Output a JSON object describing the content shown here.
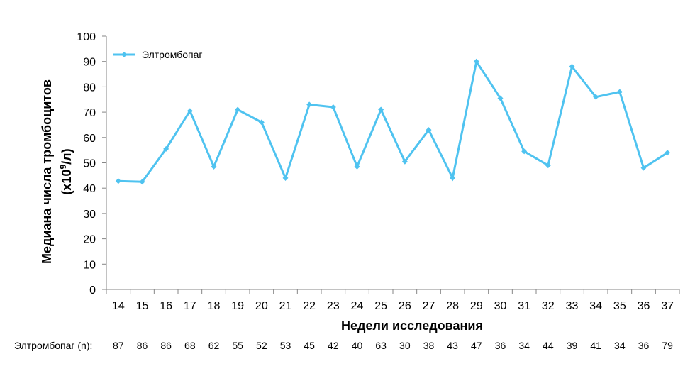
{
  "chart_data": {
    "type": "line",
    "xlabel": "Недели исследования",
    "ylabel_line1": "Медиана числа тромбоцитов",
    "ylabel_line2_prefix": "(x10",
    "ylabel_line2_sup": "9",
    "ylabel_line2_suffix": "/л)",
    "ylim": [
      0,
      100
    ],
    "yticks": [
      0,
      10,
      20,
      30,
      40,
      50,
      60,
      70,
      80,
      90,
      100
    ],
    "grid": false,
    "legend_position": "top-left",
    "categories": [
      "14",
      "15",
      "16",
      "17",
      "18",
      "19",
      "20",
      "21",
      "22",
      "23",
      "24",
      "25",
      "26",
      "27",
      "28",
      "29",
      "30",
      "31",
      "32",
      "33",
      "34",
      "35",
      "36",
      "37"
    ],
    "series": [
      {
        "name": "Элтромбопаг",
        "color": "#4fc3f0",
        "values": [
          42.8,
          42.5,
          55.5,
          70.5,
          48.5,
          71,
          66,
          44,
          73,
          72,
          48.5,
          71,
          50.5,
          63,
          44,
          90,
          75.5,
          54.5,
          49,
          88,
          76,
          78,
          48,
          54
        ]
      }
    ],
    "n_row": {
      "label": "Элтромбопаг (n):",
      "values": [
        "87",
        "86",
        "86",
        "68",
        "62",
        "55",
        "52",
        "53",
        "45",
        "42",
        "40",
        "63",
        "30",
        "38",
        "43",
        "47",
        "36",
        "34",
        "44",
        "39",
        "41",
        "34",
        "36",
        "79"
      ]
    }
  }
}
